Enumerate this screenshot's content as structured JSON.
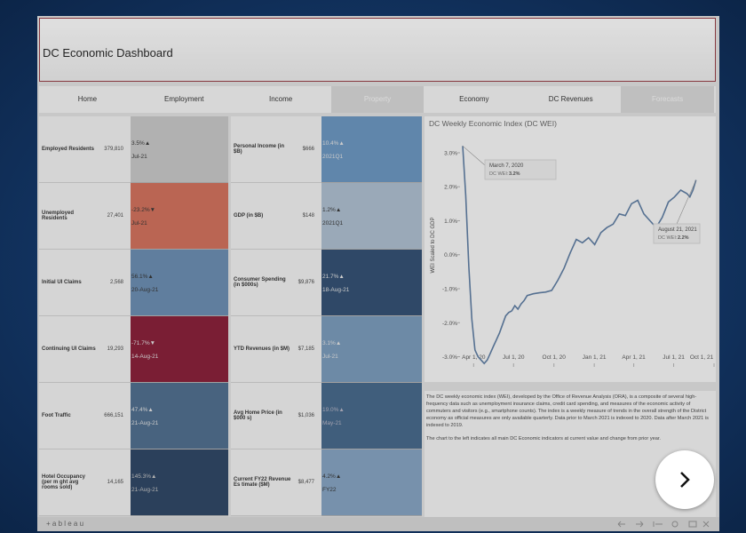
{
  "header": {
    "title": "DC Economic Dashboard"
  },
  "nav": [
    {
      "label": "Home",
      "highlighted": false
    },
    {
      "label": "Employment",
      "highlighted": false
    },
    {
      "label": "Income",
      "highlighted": false
    },
    {
      "label": "Property",
      "highlighted": true
    },
    {
      "label": "Economy",
      "highlighted": false
    },
    {
      "label": "DC Revenues",
      "highlighted": false
    },
    {
      "label": "Forecasts",
      "highlighted": true
    }
  ],
  "indicators": [
    [
      {
        "name": "Employed Residents",
        "value": "379,810",
        "change": "3.5%▲",
        "date": "Jul-21",
        "color": "#bdbdbd",
        "text_color": "#222"
      },
      {
        "name": "Unemployed Residents",
        "value": "27,401",
        "change": "-23.2%▼",
        "date": "Jul-21",
        "color": "#c9614b",
        "text_color": "#222"
      },
      {
        "name": "Initial UI Claims",
        "value": "2,568",
        "change": "56.1%▲",
        "date": "20-Aug-21",
        "color": "#5b7fa6",
        "text_color": "#222"
      },
      {
        "name": "Continuing UI Claims",
        "value": "19,293",
        "change": "-71.7%▼",
        "date": "14-Aug-21",
        "color": "#7a0a25",
        "text_color": "#ddd"
      },
      {
        "name": "Foot Traffic",
        "value": "666,151",
        "change": "47.4%▲",
        "date": "21-Aug-21",
        "color": "#3e5f80",
        "text_color": "#ddd"
      },
      {
        "name": "Hotel Occupancy (per m ght avg rooms sold)",
        "value": "14,165",
        "change": "145.3%▲",
        "date": "21-Aug-21",
        "color": "#1a3455",
        "text_color": "#bbb"
      }
    ],
    [
      {
        "name": "Personal Income (in $B)",
        "value": "$666",
        "change": "10.4%▲",
        "date": "2021Q1",
        "color": "#5b89b6",
        "text_color": "#ddd"
      },
      {
        "name": "GDP (in $B)",
        "value": "$148",
        "change": "1.2%▲",
        "date": "2021Q1",
        "color": "#a2b4c6",
        "text_color": "#222"
      },
      {
        "name": "Consumer Spending (in $000s)",
        "value": "$9,876",
        "change": "21.7%▲",
        "date": "18-Aug-21",
        "color": "#1f3e63",
        "text_color": "#ddd"
      },
      {
        "name": "YTD Revenues (in $M)",
        "value": "$7,185",
        "change": "3.1%▲",
        "date": "Jul-21",
        "color": "#6b8eb0",
        "text_color": "#ddd"
      },
      {
        "name": "Avg Home Price (in $000 s)",
        "value": "$1,036",
        "change": "19.0%▲",
        "date": "May-21",
        "color": "#34587d",
        "text_color": "#aab"
      },
      {
        "name": "Current FY22 Revenue Es timate ($M)",
        "value": "$8,477",
        "change": "4.2%▲",
        "date": "FY22",
        "color": "#7797b8",
        "text_color": "#222"
      }
    ]
  ],
  "chart_data": {
    "type": "line",
    "title": "DC Weekly Economic Index (DC WEI)",
    "y_label": "WEI Scaled to DC GDP",
    "color": "#4d6e96",
    "x": [
      "2020-03-07",
      "2020-03-14",
      "2020-03-21",
      "2020-03-28",
      "2020-04-04",
      "2020-04-11",
      "2020-04-18",
      "2020-04-25",
      "2020-05-02",
      "2020-05-09",
      "2020-05-16",
      "2020-05-23",
      "2020-05-30",
      "2020-06-06",
      "2020-06-13",
      "2020-06-20",
      "2020-06-27",
      "2020-07-04",
      "2020-07-11",
      "2020-07-18",
      "2020-07-25",
      "2020-08-01",
      "2020-08-15",
      "2020-08-29",
      "2020-09-12",
      "2020-09-26",
      "2020-10-10",
      "2020-10-24",
      "2020-11-07",
      "2020-11-21",
      "2020-12-05",
      "2020-12-19",
      "2021-01-02",
      "2021-01-16",
      "2021-01-30",
      "2021-02-13",
      "2021-02-27",
      "2021-03-13",
      "2021-03-27",
      "2021-04-10",
      "2021-04-24",
      "2021-05-08",
      "2021-05-22",
      "2021-06-05",
      "2021-06-19",
      "2021-07-03",
      "2021-07-17",
      "2021-07-31",
      "2021-08-07",
      "2021-08-14",
      "2021-08-21"
    ],
    "values": [
      3.2,
      1.75,
      -0.35,
      -1.9,
      -2.8,
      -3.0,
      -3.1,
      -3.2,
      -3.1,
      -2.9,
      -2.7,
      -2.5,
      -2.3,
      -2.05,
      -1.8,
      -1.7,
      -1.65,
      -1.5,
      -1.6,
      -1.45,
      -1.35,
      -1.2,
      -1.15,
      -1.12,
      -1.1,
      -1.05,
      -0.75,
      -0.4,
      0.05,
      0.45,
      0.35,
      0.5,
      0.3,
      0.65,
      0.8,
      0.9,
      1.2,
      1.15,
      1.5,
      1.6,
      1.2,
      1.0,
      0.8,
      1.1,
      1.55,
      1.7,
      1.9,
      1.8,
      1.7,
      1.9,
      2.2
    ],
    "xlim": [
      "2020-03-01",
      "2021-10-01"
    ],
    "xticks": [
      {
        "value": "2020-04-01",
        "label": "Apr 1, 20"
      },
      {
        "value": "2020-07-01",
        "label": "Jul 1, 20"
      },
      {
        "value": "2020-10-01",
        "label": "Oct 1, 20"
      },
      {
        "value": "2021-01-01",
        "label": "Jan 1, 21"
      },
      {
        "value": "2021-04-01",
        "label": "Apr 1, 21"
      },
      {
        "value": "2021-07-01",
        "label": "Jul 1, 21"
      },
      {
        "value": "2021-10-01",
        "label": "Oct 1, 21"
      }
    ],
    "ylim": [
      -3.3,
      3.6
    ],
    "yticks": [
      {
        "value": 3,
        "label": "3.0%"
      },
      {
        "value": 2,
        "label": "2.0%"
      },
      {
        "value": 1,
        "label": "1.0%"
      },
      {
        "value": 0,
        "label": "0.0%"
      },
      {
        "value": -1,
        "label": "-1.0%"
      },
      {
        "value": -2,
        "label": "-2.0%"
      },
      {
        "value": -3,
        "label": "-3.0%"
      }
    ],
    "annotations": [
      {
        "date": "March 7, 2020",
        "text": "DC WEI:",
        "value": "3.2%",
        "point": 0
      },
      {
        "date": "August 21, 2021",
        "text": "DC WEI:",
        "value": "2.2%",
        "point": 50
      }
    ]
  },
  "description": [
    "The DC weekly economic index (WEI), developed by the Office of Revenue Analysis (ORA), is a composite of several high-frequency data such as unemployment insurance claims, credit card spending, and measures of the economic activity of commuters and visitors (e.g., smartphone counts). The index is a weekly measure of trends in the overall strength of the District economy as official measures are only available quarterly. Data prior to March 2021 is indexed to 2020. Data after March 2021 is indexed to 2019.",
    "The chart to the left indicates all main DC Economic indicators at current value and change from prior year."
  ],
  "footer": {
    "logo": "+ a b l e a u"
  }
}
